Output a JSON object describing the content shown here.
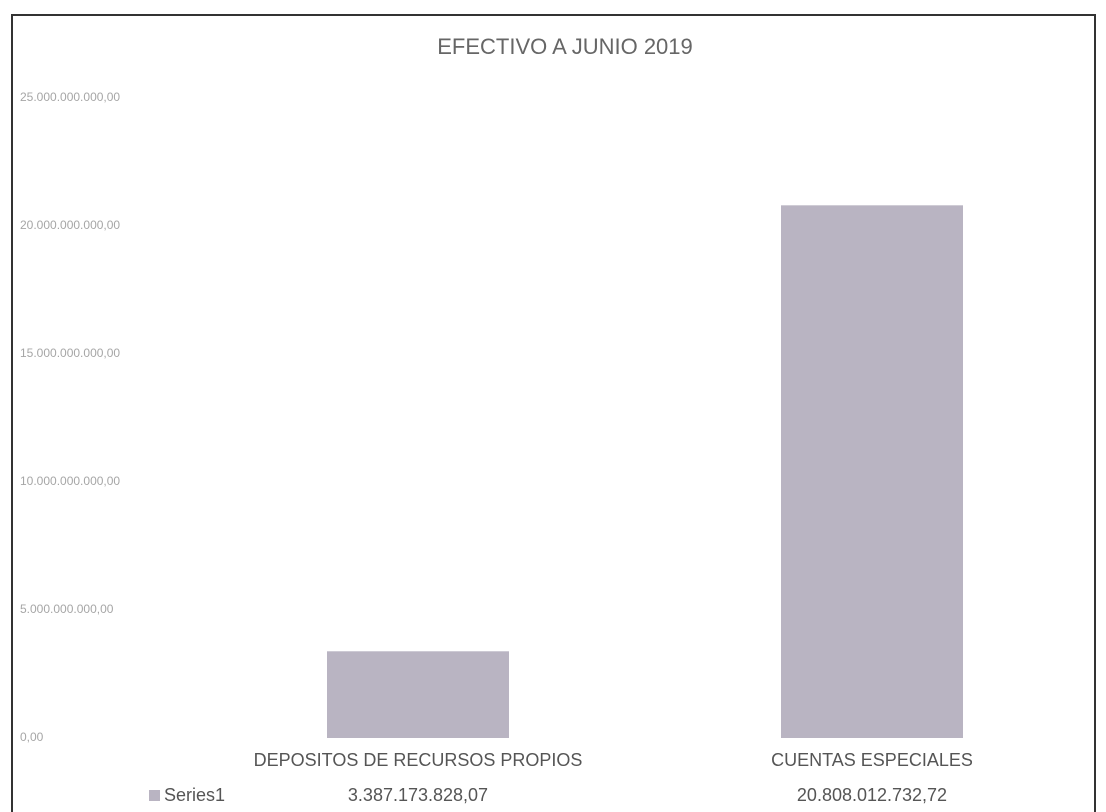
{
  "chart_data": {
    "type": "bar",
    "title": "EFECTIVO A JUNIO 2019",
    "categories": [
      "DEPOSITOS DE RECURSOS PROPIOS",
      "CUENTAS ESPECIALES"
    ],
    "series": [
      {
        "name": "Series1",
        "color": "#b9b4c2",
        "values": [
          3387173828.07,
          20808012732.72
        ],
        "value_labels": [
          "3.387.173.828,07",
          "20.808.012.732,72"
        ]
      }
    ],
    "ylim": [
      0,
      25000000000
    ],
    "yticks": [
      {
        "value": 0,
        "label": "0,00"
      },
      {
        "value": 5000000000,
        "label": "5.000.000.000,00"
      },
      {
        "value": 10000000000,
        "label": "10.000.000.000,00"
      },
      {
        "value": 15000000000,
        "label": "15.000.000.000,00"
      },
      {
        "value": 20000000000,
        "label": "20.000.000.000,00"
      },
      {
        "value": 25000000000,
        "label": "25.000.000.000,00"
      }
    ],
    "grid": false
  }
}
